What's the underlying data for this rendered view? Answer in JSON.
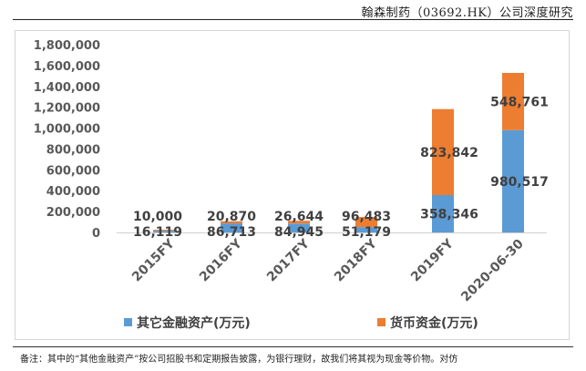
{
  "header": {
    "title": "翰森制药（03692.HK）公司深度研究"
  },
  "footer": {
    "note": "备注：其中的“其他金融资产”按公司招股书和定期报告披露，为银行理财，故我们将其视为现金等价物。对仿"
  },
  "chart_data": {
    "type": "stacked-bar",
    "categories": [
      "2015FY",
      "2016FY",
      "2017FY",
      "2018FY",
      "2019FY",
      "2020-06-30"
    ],
    "series": [
      {
        "name": "其它金融资产(万元)",
        "color": "#5b9bd5",
        "values": [
          16119,
          86713,
          84945,
          51179,
          358346,
          980517
        ],
        "labels": [
          "16,119",
          "86,713",
          "84,945",
          "51,179",
          "358,346",
          "980,517"
        ]
      },
      {
        "name": "货币资金(万元)",
        "color": "#ed7d31",
        "values": [
          10000,
          20870,
          26644,
          96483,
          823842,
          548761
        ],
        "labels": [
          "10,000",
          "20,870",
          "26,644",
          "96,483",
          "823,842",
          "548,761"
        ]
      }
    ],
    "ylim": [
      0,
      1800000
    ],
    "yticks": [
      0,
      200000,
      400000,
      600000,
      800000,
      1000000,
      1200000,
      1400000,
      1600000,
      1800000
    ],
    "ytick_labels": [
      "0",
      "200,000",
      "400,000",
      "600,000",
      "800,000",
      "1,000,000",
      "1,200,000",
      "1,400,000",
      "1,600,000",
      "1,800,000"
    ],
    "legend_position": "bottom",
    "grid": false
  }
}
